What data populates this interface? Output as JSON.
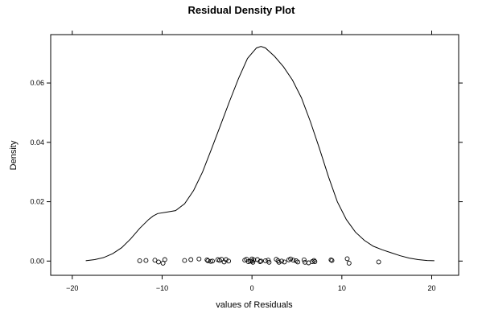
{
  "chart_data": {
    "type": "line",
    "title": "Residual Density Plot",
    "xlabel": "values of Residuals",
    "ylabel": "Density",
    "xlim": [
      -22.4,
      23.0
    ],
    "ylim": [
      -0.0048,
      0.0763
    ],
    "x_ticks": [
      -20,
      -10,
      0,
      10,
      20
    ],
    "x_tick_labels": [
      "−20",
      "−10",
      "0",
      "10",
      "20"
    ],
    "y_ticks": [
      0.0,
      0.02,
      0.04,
      0.06
    ],
    "y_tick_labels": [
      "0.00",
      "0.02",
      "0.04",
      "0.06"
    ],
    "grid": false,
    "legend": "none",
    "colors": {
      "line": "#000000",
      "points": "#000000",
      "background": "#ffffff"
    },
    "series": [
      {
        "kind": "density-curve",
        "x": [
          -18.5,
          -17.5,
          -16.5,
          -15.5,
          -14.5,
          -13.5,
          -12.5,
          -11.5,
          -11.0,
          -10.5,
          -9.5,
          -8.5,
          -7.5,
          -6.5,
          -5.5,
          -4.5,
          -3.5,
          -2.5,
          -1.5,
          -0.5,
          0.5,
          1.0,
          1.5,
          2.5,
          3.5,
          4.5,
          5.5,
          6.5,
          7.5,
          8.5,
          9.5,
          10.5,
          11.5,
          12.5,
          13.5,
          14.5,
          15.5,
          16.5,
          17.5,
          18.5,
          19.5,
          20.3
        ],
        "y": [
          0.0001,
          0.0005,
          0.0012,
          0.0025,
          0.0045,
          0.0075,
          0.011,
          0.014,
          0.0152,
          0.016,
          0.0165,
          0.017,
          0.0193,
          0.0238,
          0.03,
          0.0378,
          0.0458,
          0.0538,
          0.0615,
          0.0683,
          0.0718,
          0.0723,
          0.0718,
          0.069,
          0.0655,
          0.061,
          0.055,
          0.047,
          0.038,
          0.0285,
          0.02,
          0.014,
          0.0098,
          0.007,
          0.005,
          0.0038,
          0.0028,
          0.0018,
          0.001,
          0.0005,
          0.0002,
          0.0001
        ]
      },
      {
        "kind": "rug-points",
        "x": [
          -12.5,
          -11.8,
          -10.8,
          -10.4,
          -9.9,
          -9.7,
          -7.5,
          -6.8,
          -5.9,
          -5.0,
          -4.9,
          -4.6,
          -4.4,
          -3.8,
          -3.6,
          -3.4,
          -3.1,
          -2.9,
          -2.6,
          -0.8,
          -0.6,
          -0.4,
          -0.2,
          0.0,
          0.0,
          0.1,
          0.2,
          0.6,
          0.9,
          1.0,
          1.5,
          1.8,
          1.9,
          2.7,
          2.9,
          3.0,
          3.3,
          3.6,
          4.1,
          4.3,
          4.6,
          4.9,
          5.1,
          5.8,
          5.9,
          6.3,
          6.7,
          6.9,
          7.0,
          8.8,
          8.9,
          10.6,
          10.8,
          14.1
        ],
        "y": [
          0.0001,
          0.0002,
          0.0003,
          -0.0003,
          -0.0007,
          0.0005,
          0.0002,
          0.0005,
          0.0007,
          0.0004,
          0.0001,
          -0.0001,
          0.0,
          0.0005,
          0.0002,
          0.0006,
          -0.0003,
          0.0005,
          0.0,
          0.0003,
          0.0006,
          -0.0002,
          0.0,
          0.0007,
          0.0,
          -0.0004,
          0.0004,
          0.0005,
          -0.0002,
          0.0,
          0.0001,
          0.0003,
          -0.0004,
          0.0006,
          0.0001,
          -0.0004,
          0.0,
          -0.0003,
          0.0004,
          0.0007,
          0.0003,
          0.0001,
          -0.0003,
          0.0004,
          -0.0004,
          -0.0006,
          -0.0002,
          0.0002,
          -0.0002,
          0.0004,
          0.0002,
          0.0008,
          -0.0007,
          -0.0003
        ]
      }
    ]
  }
}
